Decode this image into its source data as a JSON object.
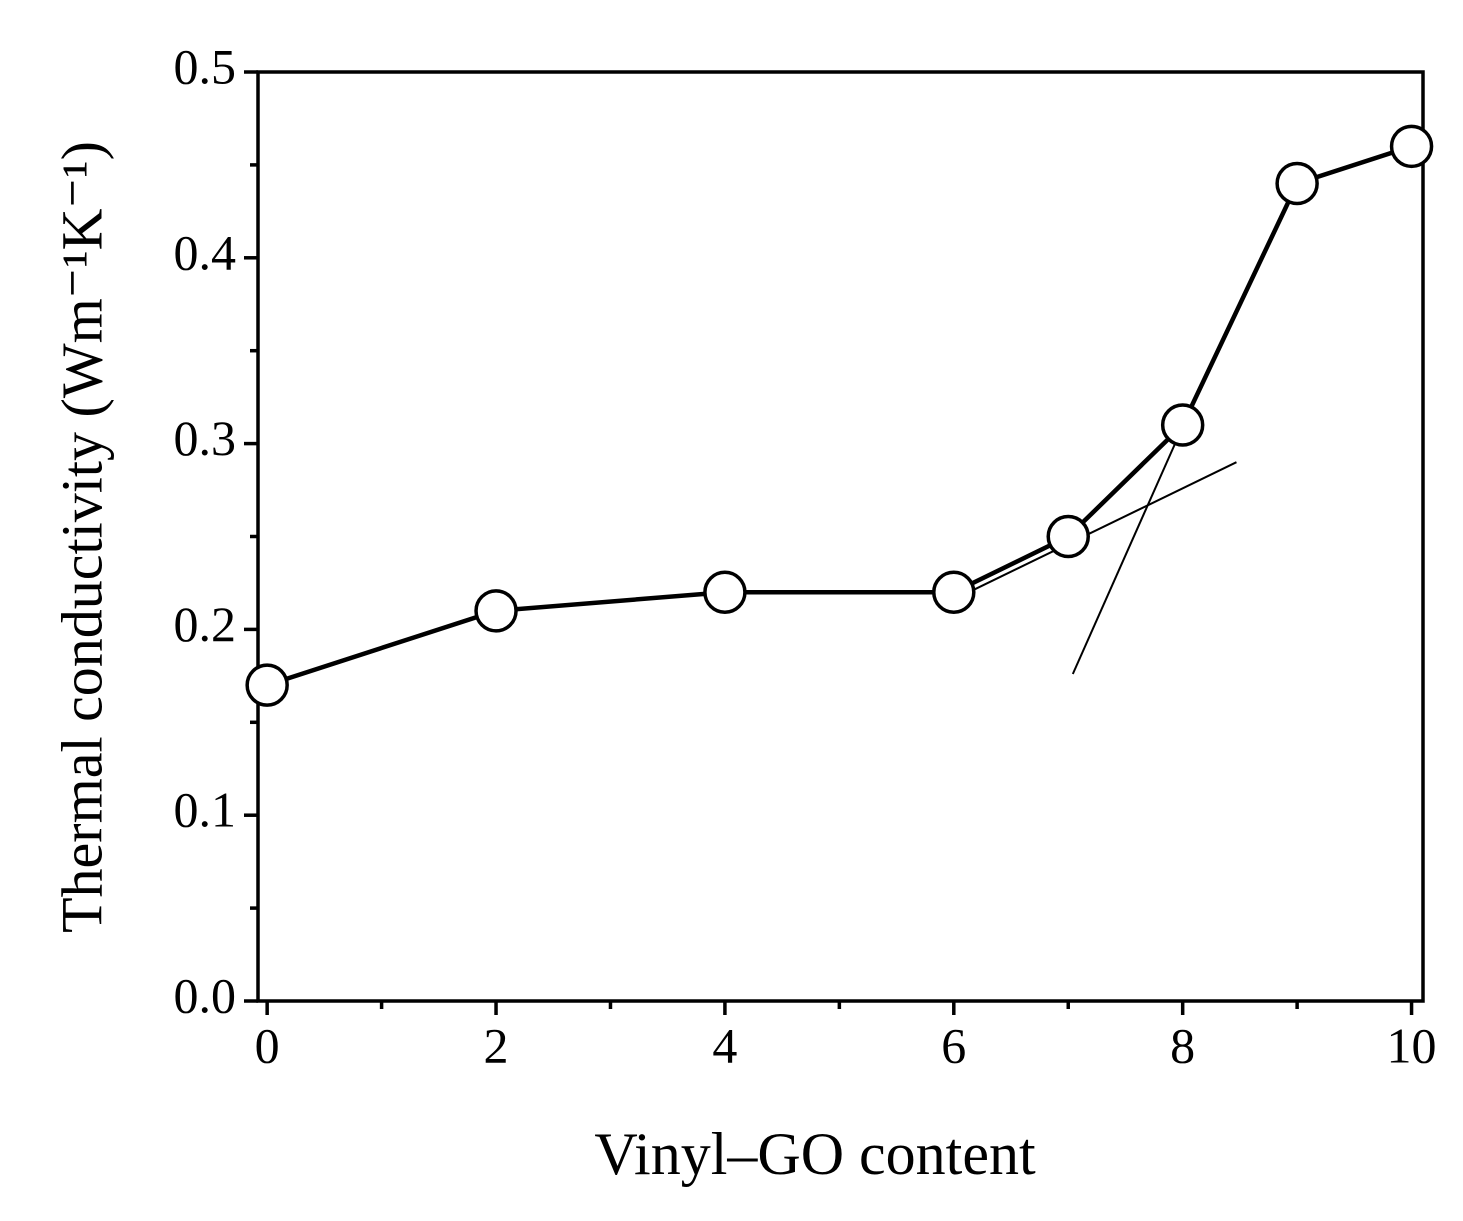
{
  "chart_data": {
    "type": "line",
    "x_label": "Vinyl–GO content",
    "y_label": "Thermal conductivity (Wm⁻¹K⁻¹)",
    "x": [
      0,
      2,
      4,
      6,
      7,
      8,
      9,
      10
    ],
    "series": [
      {
        "values": [
          0.17,
          0.21,
          0.22,
          0.22,
          0.25,
          0.31,
          0.44,
          0.46
        ],
        "color": "#000000"
      }
    ],
    "xlim": [
      -0.08,
      10.1
    ],
    "ylim": [
      0,
      0.5
    ],
    "xticks": [
      0,
      2,
      4,
      6,
      8,
      10
    ],
    "xminorticks": [
      1,
      3,
      5,
      7,
      9
    ],
    "yticks": [
      {
        "value": 0,
        "label": "0.0"
      },
      0.1,
      0.2,
      0.3,
      0.4,
      0.5
    ],
    "yminorticks": [
      0.05,
      0.15,
      0.25,
      0.35,
      0.45
    ],
    "tangent_lines": [
      {
        "x": [
          6.03,
          8.47
        ],
        "y": [
          0.217,
          0.29
        ]
      },
      {
        "x": [
          7.04,
          8.15
        ],
        "y": [
          0.176,
          0.33
        ]
      }
    ],
    "marker": "open-circle"
  }
}
